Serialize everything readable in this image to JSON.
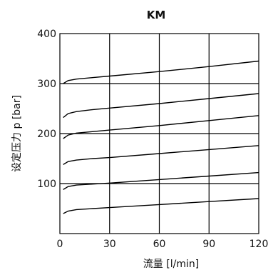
{
  "chart_data": {
    "type": "line",
    "title": "KM",
    "xlabel": "流量 [l/min]",
    "ylabel": "设定压力 p [bar]",
    "xlim": [
      0,
      120
    ],
    "ylim": [
      0,
      400
    ],
    "xticks": [
      "0",
      "30",
      "60",
      "90",
      "120"
    ],
    "yticks": [
      "100",
      "200",
      "300",
      "400"
    ],
    "grid": true,
    "series": [
      {
        "x": [
          2,
          5,
          10,
          20,
          30,
          60,
          90,
          120
        ],
        "values": [
          40,
          45,
          48,
          50,
          52,
          58,
          64,
          70
        ]
      },
      {
        "x": [
          2,
          5,
          10,
          20,
          30,
          60,
          90,
          120
        ],
        "values": [
          88,
          94,
          97,
          99,
          101,
          108,
          115,
          122
        ]
      },
      {
        "x": [
          2,
          5,
          10,
          20,
          30,
          60,
          90,
          120
        ],
        "values": [
          138,
          144,
          147,
          150,
          152,
          160,
          168,
          176
        ]
      },
      {
        "x": [
          2,
          5,
          10,
          20,
          30,
          60,
          90,
          120
        ],
        "values": [
          190,
          197,
          201,
          204,
          207,
          216,
          226,
          236
        ]
      },
      {
        "x": [
          2,
          5,
          10,
          20,
          30,
          60,
          90,
          120
        ],
        "values": [
          232,
          240,
          244,
          248,
          251,
          260,
          270,
          280
        ]
      },
      {
        "x": [
          2,
          5,
          10,
          20,
          30,
          60,
          90,
          120
        ],
        "values": [
          300,
          306,
          309,
          312,
          315,
          324,
          334,
          345
        ]
      }
    ]
  }
}
